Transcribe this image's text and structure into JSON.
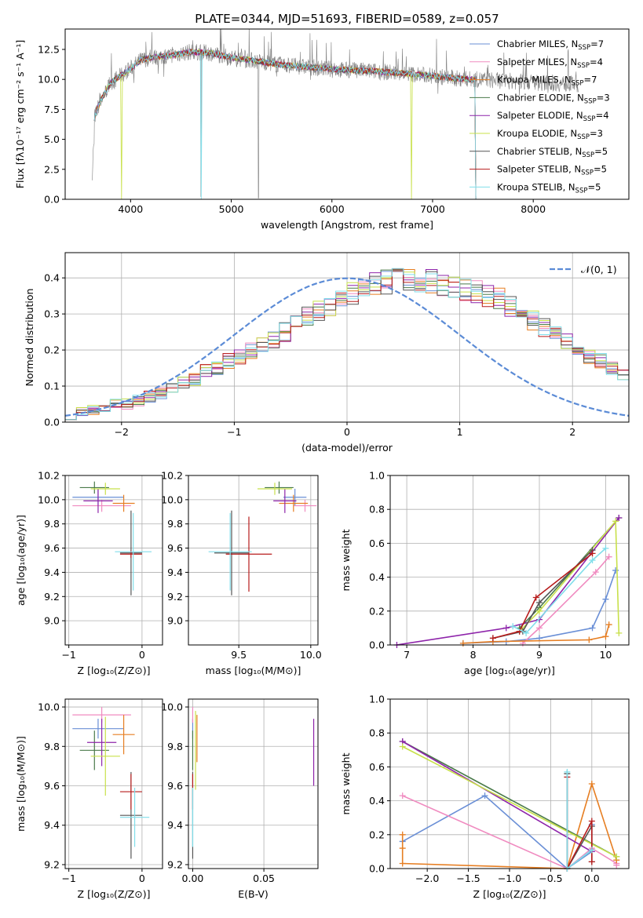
{
  "chart_data": [
    {
      "type": "line",
      "title": "PLATE=0344, MJD=51693, FIBERID=0589, z=0.057",
      "xlabel": "wavelength [Angstrom, rest frame]",
      "ylabel": "Flux [fλ10⁻¹⁷ erg cm⁻² s⁻¹ A⁻¹]",
      "xlim": [
        3350,
        8950
      ],
      "ylim": [
        0,
        14.2
      ],
      "xticks": [
        "4000",
        "5000",
        "6000",
        "7000",
        "8000"
      ],
      "yticks": [
        "0.0",
        "2.5",
        "5.0",
        "7.5",
        "10.0",
        "12.5"
      ],
      "grid": false,
      "legend_position": "top-right",
      "legend": [
        {
          "name": "Chabrier MILES, N",
          "sub": "SSP",
          "val": "=7",
          "color": "#6a8fd6"
        },
        {
          "name": "Salpeter MILES, N",
          "sub": "SSP",
          "val": "=4",
          "color": "#f08bc0"
        },
        {
          "name": "Kroupa MILES, N",
          "sub": "SSP",
          "val": "=7",
          "color": "#e67e22"
        },
        {
          "name": "Chabrier ELODIE, N",
          "sub": "SSP",
          "val": "=3",
          "color": "#4a7a4a"
        },
        {
          "name": "Salpeter ELODIE, N",
          "sub": "SSP",
          "val": "=4",
          "color": "#8e24aa"
        },
        {
          "name": "Kroupa ELODIE, N",
          "sub": "SSP",
          "val": "=3",
          "color": "#c8e04a"
        },
        {
          "name": "Chabrier STELIB, N",
          "sub": "SSP",
          "val": "=5",
          "color": "#555555"
        },
        {
          "name": "Salpeter STELIB, N",
          "sub": "SSP",
          "val": "=5",
          "color": "#b71c1c"
        },
        {
          "name": "Kroupa STELIB, N",
          "sub": "SSP",
          "val": "=5",
          "color": "#80deea"
        }
      ],
      "data_color": "#808080",
      "model_continuum": [
        [
          3640,
          6.8
        ],
        [
          3700,
          8.2
        ],
        [
          3800,
          9.7
        ],
        [
          3900,
          10.3
        ],
        [
          4000,
          10.9
        ],
        [
          4100,
          11.6
        ],
        [
          4200,
          11.8
        ],
        [
          4400,
          12.0
        ],
        [
          4600,
          12.3
        ],
        [
          4800,
          12.2
        ],
        [
          5000,
          11.8
        ],
        [
          5200,
          11.6
        ],
        [
          5500,
          11.2
        ],
        [
          5800,
          11.0
        ],
        [
          6100,
          10.8
        ],
        [
          6400,
          10.7
        ],
        [
          6700,
          10.5
        ],
        [
          7000,
          10.3
        ],
        [
          7200,
          10.1
        ],
        [
          7400,
          10.0
        ]
      ],
      "observed_range": [
        3620,
        8450
      ]
    },
    {
      "type": "bar",
      "subtype": "step-histogram",
      "xlabel": "(data-model)/error",
      "ylabel": "Normed distribution",
      "xlim": [
        -2.5,
        2.5
      ],
      "ylim": [
        0,
        0.47
      ],
      "xticks": [
        "−2",
        "−1",
        "0",
        "1",
        "2"
      ],
      "yticks": [
        "0.0",
        "0.1",
        "0.2",
        "0.3",
        "0.4"
      ],
      "grid": true,
      "legend": [
        {
          "name": "𝒩(0, 1)",
          "color": "#5b8bd6",
          "style": "dashed"
        }
      ],
      "bin_edges_start": -2.5,
      "bin_width": 0.1,
      "base_values": [
        0.02,
        0.03,
        0.035,
        0.04,
        0.05,
        0.05,
        0.06,
        0.07,
        0.08,
        0.09,
        0.11,
        0.12,
        0.14,
        0.15,
        0.17,
        0.18,
        0.2,
        0.21,
        0.23,
        0.25,
        0.27,
        0.29,
        0.31,
        0.32,
        0.34,
        0.36,
        0.37,
        0.38,
        0.39,
        0.4,
        0.4,
        0.39,
        0.39,
        0.38,
        0.38,
        0.37,
        0.36,
        0.35,
        0.34,
        0.32,
        0.3,
        0.28,
        0.26,
        0.24,
        0.22,
        0.2,
        0.18,
        0.17,
        0.15,
        0.13,
        0.12,
        0.11,
        0.1,
        0.09,
        0.085,
        0.08,
        0.07,
        0.06,
        0.05,
        0.045,
        0.04,
        0.03,
        0.025,
        0.02,
        0.02,
        0.02,
        0.015,
        0.015,
        0.01,
        0.01
      ]
    },
    {
      "type": "scatter",
      "subtype": "errorbar",
      "xlabel": "Z [log₁₀(Z/Z⊙)]",
      "ylabel": "age  [log₁₀(age/yr)]",
      "xlim": [
        -1.05,
        0.28
      ],
      "ylim": [
        8.8,
        10.2
      ],
      "xticks": [
        "−1",
        "0"
      ],
      "yticks": [
        "9.0",
        "9.2",
        "9.4",
        "9.6",
        "9.8",
        "10.0",
        "10.2"
      ],
      "grid": true,
      "points": [
        {
          "x": -0.6,
          "xerr": 0.35,
          "y": 10.02,
          "yerr": 0.07,
          "color": "#6a8fd6"
        },
        {
          "x": -0.55,
          "xerr": 0.4,
          "y": 9.95,
          "yerr": 0.05,
          "color": "#f08bc0"
        },
        {
          "x": -0.25,
          "xerr": 0.15,
          "y": 9.97,
          "yerr": 0.07,
          "color": "#e67e22"
        },
        {
          "x": -0.65,
          "xerr": 0.2,
          "y": 10.1,
          "yerr": 0.05,
          "color": "#4a7a4a"
        },
        {
          "x": -0.6,
          "xerr": 0.2,
          "y": 9.99,
          "yerr": 0.1,
          "color": "#8e24aa"
        },
        {
          "x": -0.5,
          "xerr": 0.2,
          "y": 10.09,
          "yerr": 0.05,
          "color": "#c8e04a"
        },
        {
          "x": -0.15,
          "xerr": 0.15,
          "y": 9.56,
          "yerr": 0.35,
          "color": "#555555"
        },
        {
          "x": -0.15,
          "xerr": 0.15,
          "y": 9.55,
          "yerr": 0.03,
          "color": "#b71c1c"
        },
        {
          "x": -0.12,
          "xerr": 0.25,
          "y": 9.57,
          "yerr": 0.32,
          "color": "#80deea"
        }
      ]
    },
    {
      "type": "scatter",
      "subtype": "errorbar",
      "xlabel": "mass [log₁₀(M/M⊙)]",
      "ylabel": "",
      "xlim": [
        9.15,
        10.05
      ],
      "ylim": [
        8.8,
        10.2
      ],
      "xticks": [
        "9.5",
        "10.0"
      ],
      "yticks": [
        "9.0",
        "9.2",
        "9.4",
        "9.6",
        "9.8",
        "10.0",
        "10.2"
      ],
      "grid": true,
      "points": [
        {
          "x": 9.89,
          "xerr": 0.08,
          "y": 10.02,
          "yerr": 0.07,
          "color": "#6a8fd6"
        },
        {
          "x": 9.96,
          "xerr": 0.08,
          "y": 9.95,
          "yerr": 0.05,
          "color": "#f08bc0"
        },
        {
          "x": 9.88,
          "xerr": 0.1,
          "y": 9.97,
          "yerr": 0.07,
          "color": "#e67e22"
        },
        {
          "x": 9.78,
          "xerr": 0.1,
          "y": 10.1,
          "yerr": 0.05,
          "color": "#4a7a4a"
        },
        {
          "x": 9.82,
          "xerr": 0.08,
          "y": 9.99,
          "yerr": 0.1,
          "color": "#8e24aa"
        },
        {
          "x": 9.75,
          "xerr": 0.12,
          "y": 10.09,
          "yerr": 0.05,
          "color": "#c8e04a"
        },
        {
          "x": 9.45,
          "xerr": 0.12,
          "y": 9.56,
          "yerr": 0.35,
          "color": "#555555"
        },
        {
          "x": 9.57,
          "xerr": 0.16,
          "y": 9.55,
          "yerr": 0.31,
          "color": "#b71c1c"
        },
        {
          "x": 9.44,
          "xerr": 0.15,
          "y": 9.57,
          "yerr": 0.32,
          "color": "#80deea"
        }
      ]
    },
    {
      "type": "line",
      "xlabel": "age  [log₁₀(age/yr)]",
      "ylabel": "mass weight",
      "xlim": [
        6.75,
        10.35
      ],
      "ylim": [
        0,
        1.0
      ],
      "xticks": [
        "7",
        "8",
        "9",
        "10"
      ],
      "yticks": [
        "0.0",
        "0.2",
        "0.4",
        "0.6",
        "0.8",
        "1.0"
      ],
      "grid": true,
      "series": [
        {
          "color": "#6a8fd6",
          "x": [
            7.85,
            8.5,
            9.0,
            9.8,
            10.0,
            10.15
          ],
          "y": [
            0.01,
            0.02,
            0.04,
            0.1,
            0.27,
            0.44
          ]
        },
        {
          "color": "#f08bc0",
          "x": [
            8.75,
            9.0,
            9.85,
            10.05
          ],
          "y": [
            0.01,
            0.1,
            0.43,
            0.52
          ]
        },
        {
          "color": "#e67e22",
          "x": [
            7.85,
            8.3,
            9.75,
            10.0,
            10.05
          ],
          "y": [
            0.01,
            0.02,
            0.03,
            0.05,
            0.12
          ]
        },
        {
          "color": "#4a7a4a",
          "x": [
            8.7,
            9.0,
            10.2
          ],
          "y": [
            0.1,
            0.22,
            0.75
          ]
        },
        {
          "color": "#8e24aa",
          "x": [
            6.85,
            8.5,
            9.0,
            10.2
          ],
          "y": [
            0.0,
            0.1,
            0.15,
            0.75
          ]
        },
        {
          "color": "#c8e04a",
          "x": [
            8.7,
            9.0,
            10.15,
            10.2
          ],
          "y": [
            0.08,
            0.2,
            0.73,
            0.07
          ]
        },
        {
          "color": "#555555",
          "x": [
            8.3,
            8.75,
            9.0,
            9.8
          ],
          "y": [
            0.04,
            0.08,
            0.25,
            0.56
          ]
        },
        {
          "color": "#b71c1c",
          "x": [
            8.3,
            8.7,
            8.95,
            9.8
          ],
          "y": [
            0.04,
            0.08,
            0.28,
            0.54
          ]
        },
        {
          "color": "#80deea",
          "x": [
            8.6,
            8.8,
            9.8,
            10.0
          ],
          "y": [
            0.11,
            0.07,
            0.5,
            0.57
          ]
        }
      ]
    },
    {
      "type": "scatter",
      "subtype": "errorbar",
      "xlabel": "Z [log₁₀(Z/Z⊙)]",
      "ylabel": "mass [log₁₀(M/M⊙)]",
      "xlim": [
        -1.05,
        0.28
      ],
      "ylim": [
        9.18,
        10.04
      ],
      "xticks": [
        "−1",
        "0"
      ],
      "yticks": [
        "9.2",
        "9.4",
        "9.6",
        "9.8",
        "10.0"
      ],
      "grid": true,
      "points": [
        {
          "x": -0.6,
          "xerr": 0.35,
          "y": 9.89,
          "yerr": 0.05,
          "color": "#6a8fd6"
        },
        {
          "x": -0.55,
          "xerr": 0.4,
          "y": 9.96,
          "yerr": 0.04,
          "color": "#f08bc0"
        },
        {
          "x": -0.25,
          "xerr": 0.15,
          "y": 9.86,
          "yerr": 0.1,
          "color": "#e67e22"
        },
        {
          "x": -0.65,
          "xerr": 0.2,
          "y": 9.78,
          "yerr": 0.1,
          "color": "#4a7a4a"
        },
        {
          "x": -0.55,
          "xerr": 0.2,
          "y": 9.82,
          "yerr": 0.12,
          "color": "#8e24aa"
        },
        {
          "x": -0.5,
          "xerr": 0.2,
          "y": 9.75,
          "yerr": 0.2,
          "color": "#c8e04a"
        },
        {
          "x": -0.15,
          "xerr": 0.15,
          "y": 9.45,
          "yerr": 0.22,
          "color": "#555555"
        },
        {
          "x": -0.15,
          "xerr": 0.15,
          "y": 9.57,
          "yerr": 0.09,
          "color": "#b71c1c"
        },
        {
          "x": -0.1,
          "xerr": 0.2,
          "y": 9.44,
          "yerr": 0.15,
          "color": "#80deea"
        }
      ]
    },
    {
      "type": "scatter",
      "subtype": "errorbar",
      "xlabel": "E(B-V)",
      "ylabel": "",
      "xlim": [
        -0.003,
        0.088
      ],
      "ylim": [
        9.18,
        10.04
      ],
      "xticks": [
        "0.00",
        "0.05"
      ],
      "yticks": [
        "9.2",
        "9.4",
        "9.6",
        "9.8",
        "10.0"
      ],
      "grid": true,
      "points": [
        {
          "x": 0.0,
          "xerr": 0.0,
          "y": 9.89,
          "yerr": 0.05,
          "color": "#6a8fd6"
        },
        {
          "x": 0.0,
          "xerr": 0.0,
          "y": 9.96,
          "yerr": 0.04,
          "color": "#f08bc0"
        },
        {
          "x": 0.003,
          "xerr": 0.0,
          "y": 9.84,
          "yerr": 0.12,
          "color": "#e67e22"
        },
        {
          "x": 0.0,
          "xerr": 0.0,
          "y": 9.78,
          "yerr": 0.1,
          "color": "#4a7a4a"
        },
        {
          "x": 0.085,
          "xerr": 0.0,
          "y": 9.77,
          "yerr": 0.17,
          "color": "#8e24aa"
        },
        {
          "x": 0.002,
          "xerr": 0.0,
          "y": 9.78,
          "yerr": 0.2,
          "color": "#c8e04a"
        },
        {
          "x": 0.0,
          "xerr": 0.0,
          "y": 9.45,
          "yerr": 0.22,
          "color": "#555555"
        },
        {
          "x": 0.0,
          "xerr": 0.0,
          "y": 9.57,
          "yerr": 0.09,
          "color": "#b71c1c"
        },
        {
          "x": 0.0,
          "xerr": 0.0,
          "y": 9.44,
          "yerr": 0.15,
          "color": "#80deea"
        }
      ]
    },
    {
      "type": "line",
      "xlabel": "Z [log₁₀(Z/Z⊙)]",
      "ylabel": "mass weight",
      "xlim": [
        -2.45,
        0.45
      ],
      "ylim": [
        0,
        1.0
      ],
      "xticks": [
        "−2.0",
        "−1.5",
        "−1.0",
        "−0.5",
        "0.0"
      ],
      "yticks": [
        "0.0",
        "0.2",
        "0.4",
        "0.6",
        "0.8",
        "1.0"
      ],
      "grid": true,
      "series": [
        {
          "color": "#6a8fd6",
          "x": [
            -2.3,
            -1.3,
            -0.3,
            0.0,
            0.0
          ],
          "y": [
            0.16,
            0.43,
            0.0,
            0.1,
            0.26
          ]
        },
        {
          "color": "#f08bc0",
          "x": [
            -2.3,
            -0.3,
            0.0,
            0.3,
            0.3
          ],
          "y": [
            0.43,
            0.0,
            0.12,
            0.03,
            0.02
          ]
        },
        {
          "color": "#e67e22",
          "x": [
            -2.3,
            -2.3,
            -2.3,
            -0.3,
            0.0,
            0.3
          ],
          "y": [
            0.2,
            0.12,
            0.03,
            0.0,
            0.5,
            0.05
          ]
        },
        {
          "color": "#4a7a4a",
          "x": [
            -2.3,
            0.3
          ],
          "y": [
            0.75,
            0.07
          ]
        },
        {
          "color": "#8e24aa",
          "x": [
            -2.3,
            0.0
          ],
          "y": [
            0.75,
            0.1
          ]
        },
        {
          "color": "#c8e04a",
          "x": [
            -2.3,
            0.3
          ],
          "y": [
            0.72,
            0.07
          ]
        },
        {
          "color": "#555555",
          "x": [
            -0.3,
            -0.3,
            0.0,
            0.0
          ],
          "y": [
            0.56,
            0.0,
            0.25,
            0.04
          ]
        },
        {
          "color": "#b71c1c",
          "x": [
            -0.3,
            -0.3,
            0.0,
            0.0
          ],
          "y": [
            0.54,
            0.0,
            0.28,
            0.04
          ]
        },
        {
          "color": "#80deea",
          "x": [
            -0.3,
            -0.3,
            0.0
          ],
          "y": [
            0.57,
            0.0,
            0.11
          ]
        }
      ]
    }
  ]
}
